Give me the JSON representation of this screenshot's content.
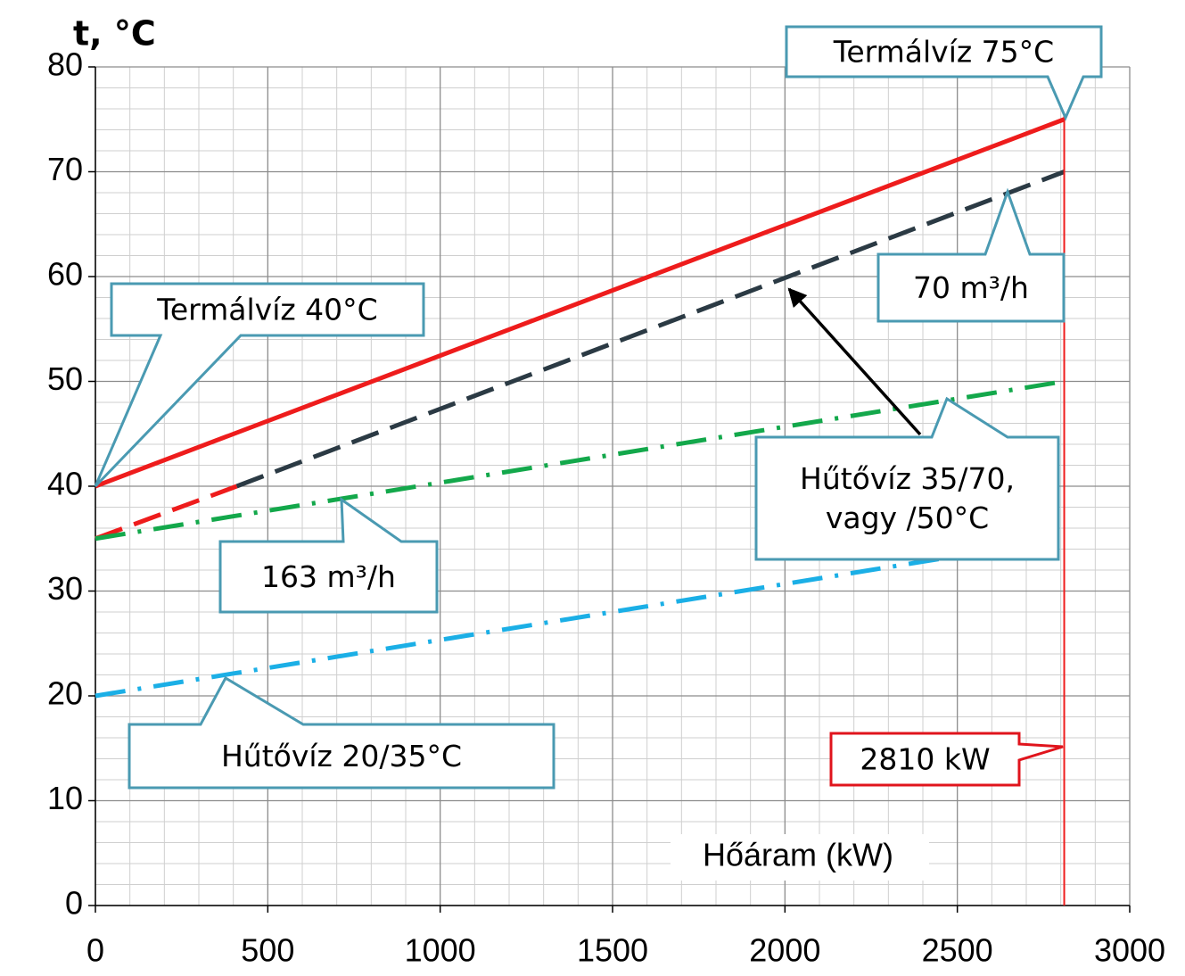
{
  "chart_data": {
    "type": "line",
    "ylabel": "t, °C",
    "xlabel": "Hőáram (kW)",
    "xlim": [
      0,
      3000
    ],
    "ylim": [
      0,
      80
    ],
    "xticks": [
      0,
      500,
      1000,
      1500,
      2000,
      2500,
      3000
    ],
    "yticks": [
      0,
      10,
      20,
      30,
      40,
      50,
      60,
      70,
      80
    ],
    "grid": true,
    "minor_divisions": 5,
    "series": [
      {
        "color": "#ee1c1c",
        "dash": "solid",
        "x": [
          0,
          2810
        ],
        "values": [
          40,
          75
        ]
      },
      {
        "color": "#ee1c1c",
        "dash": "dashed",
        "x": [
          0,
          410
        ],
        "values": [
          35,
          40
        ]
      },
      {
        "color": "#2b3a44",
        "dash": "dashed",
        "x": [
          410,
          2810
        ],
        "values": [
          40,
          70
        ]
      },
      {
        "color": "#13a84b",
        "dash": "dashdot",
        "x": [
          0,
          2810
        ],
        "values": [
          35,
          50
        ]
      },
      {
        "color": "#1bafe6",
        "dash": "dashdot",
        "x": [
          0,
          2810
        ],
        "values": [
          20,
          35
        ]
      }
    ],
    "vline": {
      "x": 2810,
      "color": "#ee1c1c"
    },
    "annotations": [
      {
        "text": [
          "Termálvíz 40°C"
        ]
      },
      {
        "text": [
          "Termálvíz 75°C"
        ]
      },
      {
        "text": [
          "70 m³/h"
        ]
      },
      {
        "text": [
          "Hűtővíz 35/70,",
          "vagy /50°C"
        ]
      },
      {
        "text": [
          "163 m³/h"
        ]
      },
      {
        "text": [
          "Hűtővíz 20/35°C"
        ]
      },
      {
        "text": [
          "2810 kW"
        ]
      }
    ]
  }
}
